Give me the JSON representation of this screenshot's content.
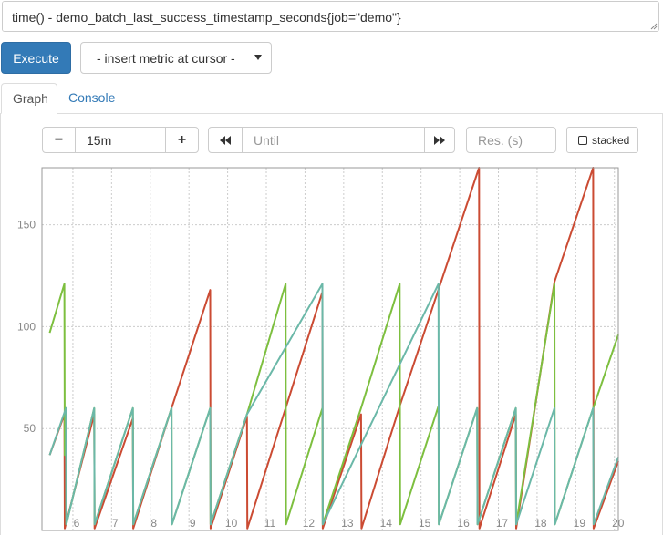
{
  "query": {
    "expression": "time() - demo_batch_last_success_timestamp_seconds{job=\"demo\"}"
  },
  "toolbar": {
    "execute_label": "Execute",
    "insert_metric_label": "- insert metric at cursor -"
  },
  "tabs": [
    {
      "label": "Graph",
      "active": true
    },
    {
      "label": "Console",
      "active": false
    }
  ],
  "controls": {
    "range_minus": "−",
    "range_value": "15m",
    "range_plus": "+",
    "back_icon": "double-left-chevron",
    "until_placeholder": "Until",
    "forward_icon": "double-right-chevron",
    "resolution_placeholder": "Res. (s)",
    "stacked_label": "stacked"
  },
  "chart_data": {
    "type": "line",
    "ylim": [
      0,
      178
    ],
    "xlim": [
      5.2,
      20.1
    ],
    "y_ticks": [
      50,
      100,
      150
    ],
    "x_ticks": [
      6,
      7,
      8,
      9,
      10,
      11,
      12,
      13,
      14,
      15,
      16,
      17,
      18,
      19,
      20
    ],
    "grid": true,
    "series": [
      {
        "color": "#cb4b33",
        "points": [
          [
            5.4,
            37
          ],
          [
            5.78,
            57
          ],
          [
            5.79,
            1
          ],
          [
            6.55,
            57
          ],
          [
            6.56,
            1
          ],
          [
            7.55,
            55
          ],
          [
            7.56,
            1
          ],
          [
            8.55,
            60
          ],
          [
            9.55,
            118
          ],
          [
            9.56,
            1
          ],
          [
            10.5,
            56
          ],
          [
            10.51,
            1
          ],
          [
            11.5,
            60
          ],
          [
            12.45,
            117
          ],
          [
            12.46,
            1
          ],
          [
            13.45,
            57
          ],
          [
            13.46,
            1
          ],
          [
            14.45,
            61
          ],
          [
            16.5,
            178
          ],
          [
            16.51,
            1
          ],
          [
            17.45,
            57
          ],
          [
            17.46,
            1
          ],
          [
            18.45,
            122
          ],
          [
            19.45,
            178
          ],
          [
            19.46,
            1
          ],
          [
            20.1,
            34
          ]
        ]
      },
      {
        "color": "#7dbf3f",
        "points": [
          [
            5.4,
            97
          ],
          [
            5.78,
            121
          ],
          [
            5.79,
            37
          ],
          [
            5.82,
            60
          ],
          [
            5.83,
            3
          ],
          [
            6.55,
            60
          ],
          [
            6.56,
            3
          ],
          [
            7.55,
            60
          ],
          [
            7.56,
            3
          ],
          [
            8.55,
            60
          ],
          [
            8.56,
            3
          ],
          [
            9.55,
            60
          ],
          [
            9.56,
            3
          ],
          [
            10.5,
            57
          ],
          [
            11.5,
            121
          ],
          [
            11.51,
            3
          ],
          [
            12.45,
            60
          ],
          [
            12.46,
            3
          ],
          [
            13.45,
            60
          ],
          [
            14.45,
            121
          ],
          [
            14.46,
            3
          ],
          [
            15.45,
            61
          ],
          [
            15.46,
            3
          ],
          [
            16.45,
            60
          ],
          [
            16.46,
            3
          ],
          [
            17.45,
            60
          ],
          [
            17.46,
            3
          ],
          [
            18.45,
            121
          ],
          [
            18.46,
            3
          ],
          [
            19.45,
            60
          ],
          [
            20.1,
            96
          ]
        ]
      },
      {
        "color": "#6bb8a8",
        "points": [
          [
            5.4,
            37
          ],
          [
            5.82,
            60
          ],
          [
            5.83,
            3
          ],
          [
            6.55,
            60
          ],
          [
            6.56,
            3
          ],
          [
            7.55,
            60
          ],
          [
            7.56,
            3
          ],
          [
            8.55,
            60
          ],
          [
            8.56,
            3
          ],
          [
            9.55,
            60
          ],
          [
            9.56,
            3
          ],
          [
            10.5,
            57
          ],
          [
            12.45,
            121
          ],
          [
            12.46,
            3
          ],
          [
            15.45,
            121
          ],
          [
            15.46,
            3
          ],
          [
            16.45,
            60
          ],
          [
            16.46,
            3
          ],
          [
            17.45,
            60
          ],
          [
            17.46,
            3
          ],
          [
            18.45,
            60
          ],
          [
            18.46,
            3
          ],
          [
            19.45,
            60
          ],
          [
            19.46,
            3
          ],
          [
            20.1,
            36
          ]
        ]
      }
    ]
  }
}
